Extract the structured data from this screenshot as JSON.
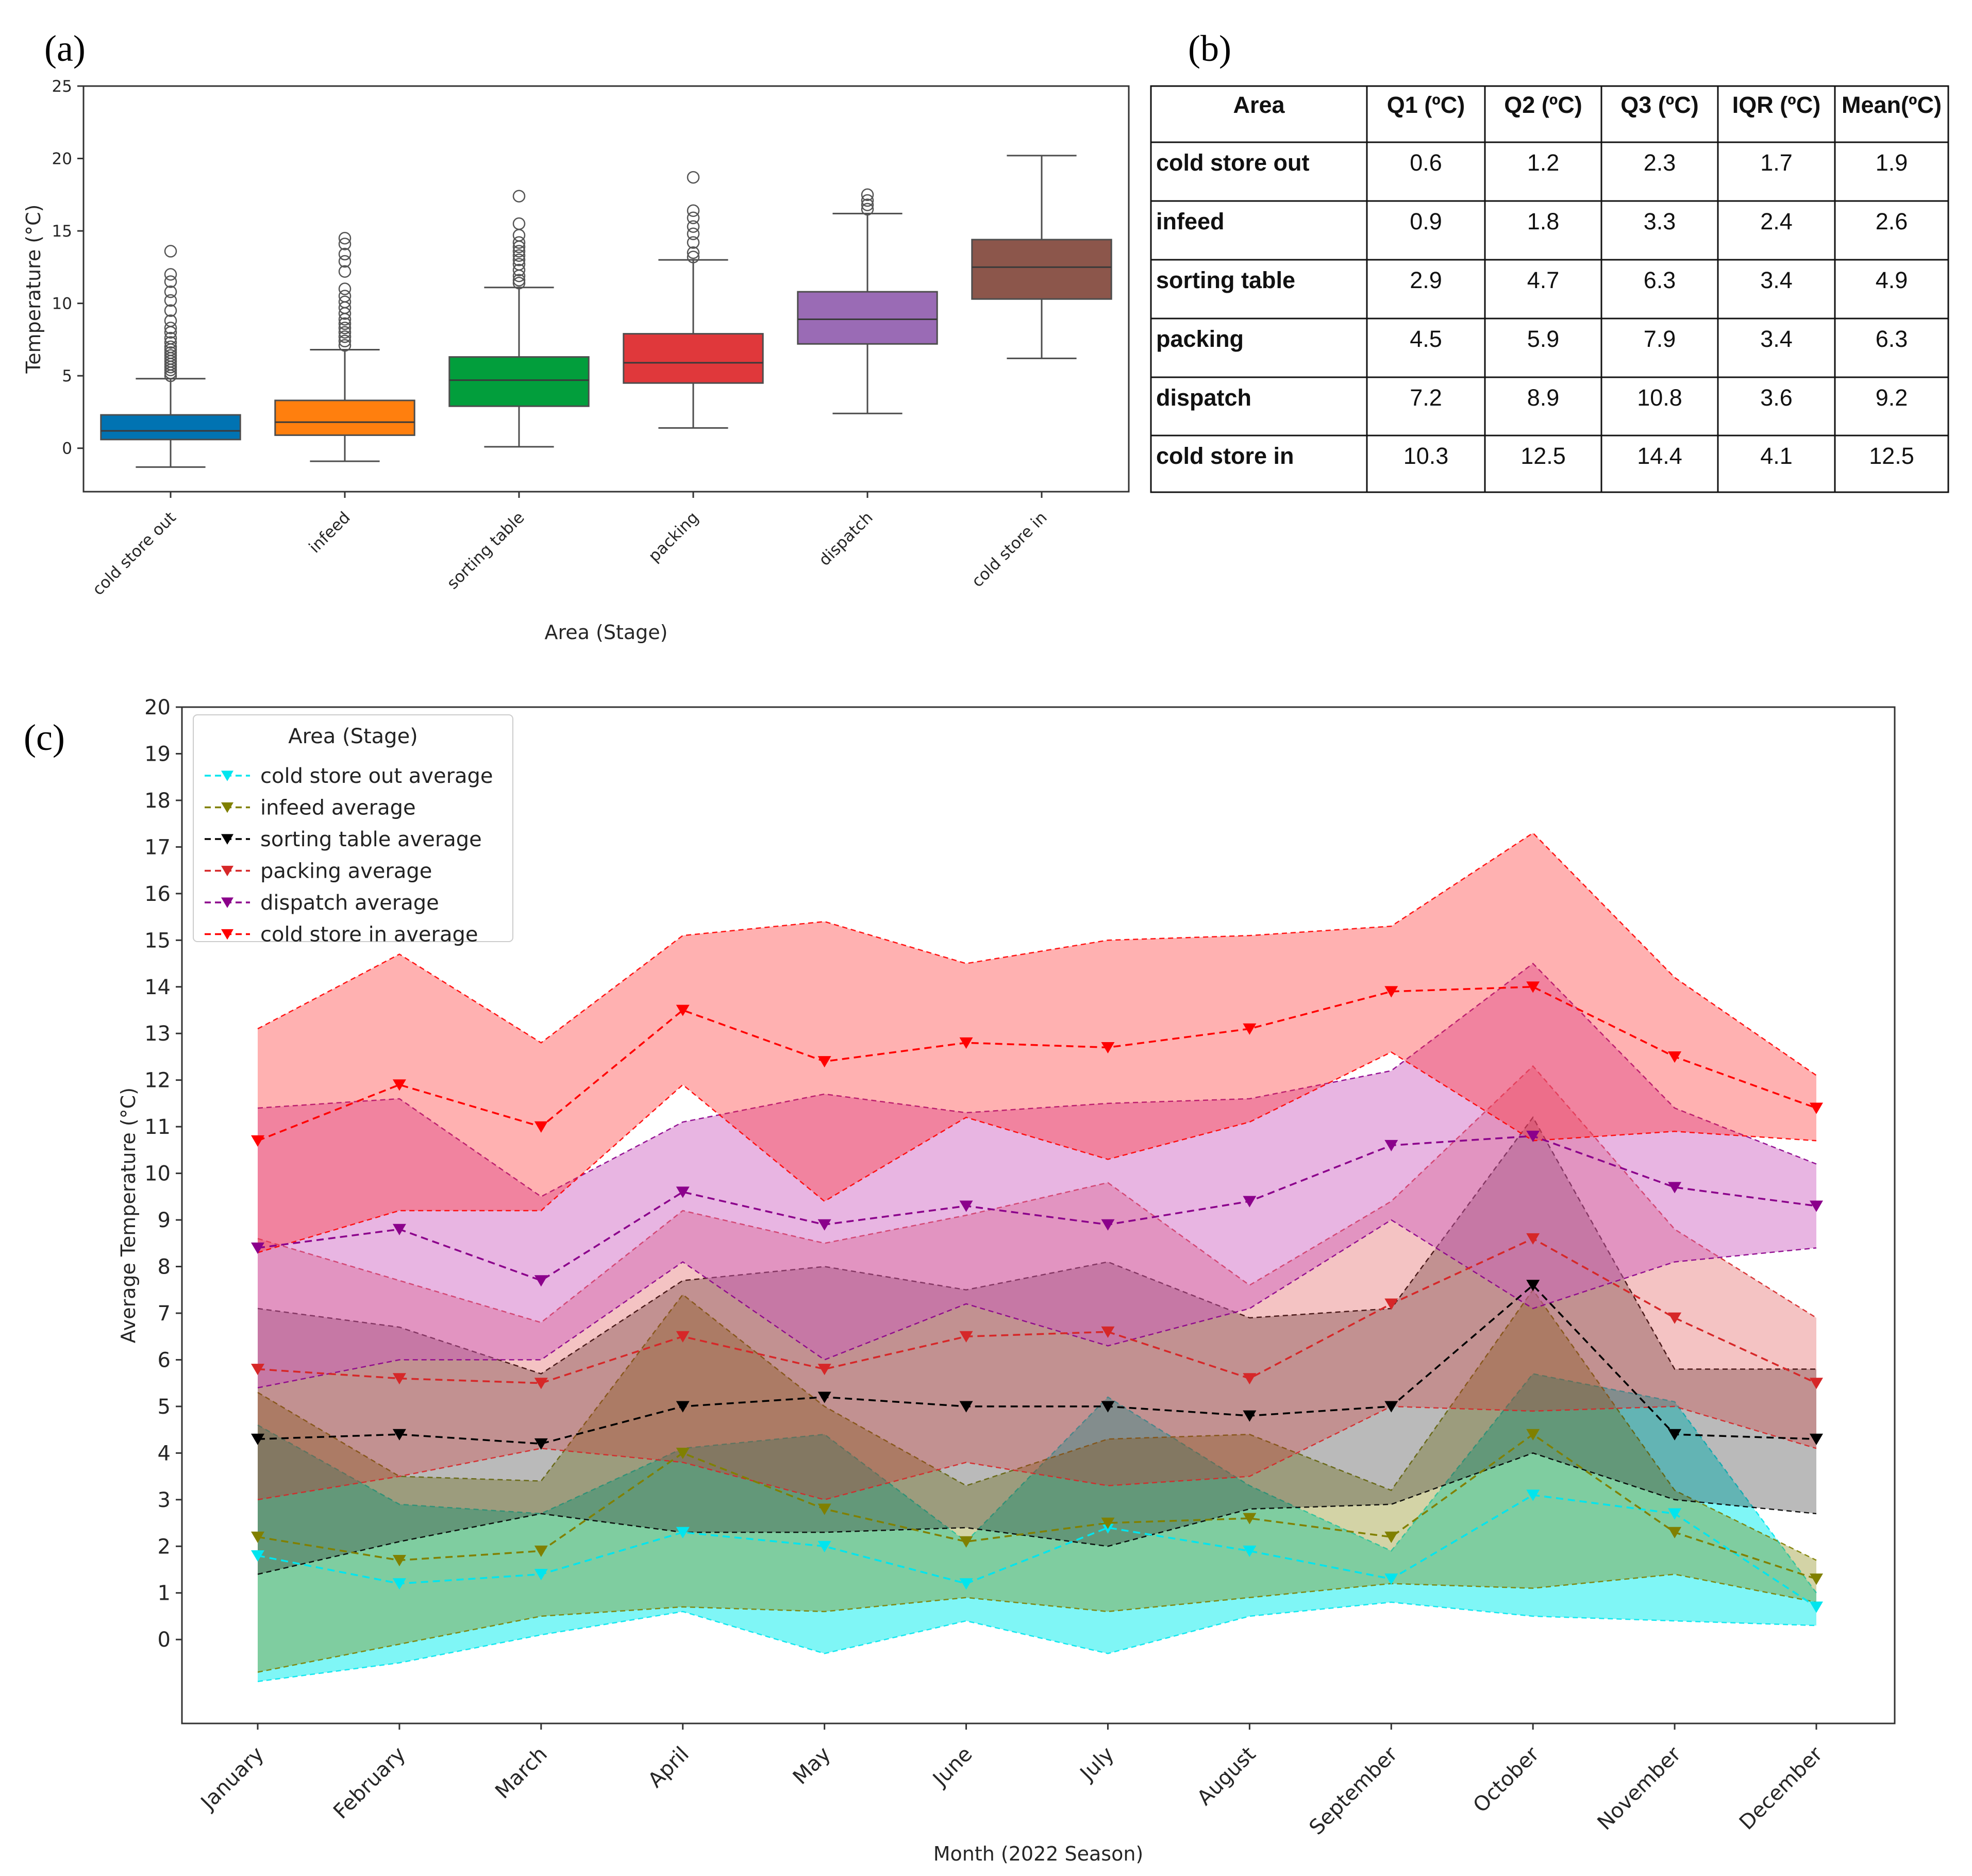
{
  "panel_labels": {
    "a": "(a)",
    "b": "(b)",
    "c": "(c)"
  },
  "chart_data": [
    {
      "type": "box",
      "categories": [
        "cold store out",
        "infeed",
        "sorting table",
        "packing",
        "dispatch",
        "cold store in"
      ],
      "colors": [
        "#0173b2",
        "#ff7f0e",
        "#029e3c",
        "#e0383b",
        "#9a6bb5",
        "#8c564b"
      ],
      "xlabel": "Area (Stage)",
      "ylabel": "Temperature (°C)",
      "ylim": [
        -3,
        25
      ],
      "yticks": [
        0,
        5,
        10,
        15,
        20,
        25
      ],
      "boxes": [
        {
          "q1": 0.6,
          "median": 1.2,
          "q3": 2.3,
          "whisker_low": -1.3,
          "whisker_high": 4.8,
          "outliers": [
            5.0,
            5.2,
            5.4,
            5.6,
            5.8,
            6.0,
            6.2,
            6.4,
            6.6,
            6.8,
            7.0,
            7.3,
            7.6,
            8.0,
            8.3,
            8.8,
            9.5,
            10.2,
            10.8,
            11.5,
            12.0,
            13.6
          ]
        },
        {
          "q1": 0.9,
          "median": 1.8,
          "q3": 3.3,
          "whisker_low": -0.9,
          "whisker_high": 6.8,
          "outliers": [
            7.1,
            7.4,
            7.7,
            8.0,
            8.3,
            8.6,
            8.9,
            9.3,
            9.7,
            10.1,
            10.5,
            11.0,
            12.2,
            12.9,
            13.4,
            14.1,
            14.5
          ]
        },
        {
          "q1": 2.9,
          "median": 4.7,
          "q3": 6.3,
          "whisker_low": 0.1,
          "whisker_high": 11.1,
          "outliers": [
            11.4,
            11.6,
            11.9,
            12.3,
            12.7,
            13.0,
            13.3,
            13.6,
            13.9,
            14.2,
            14.7,
            15.5,
            17.4
          ]
        },
        {
          "q1": 4.5,
          "median": 5.9,
          "q3": 7.9,
          "whisker_low": 1.4,
          "whisker_high": 13.0,
          "outliers": [
            13.2,
            13.5,
            14.2,
            14.8,
            15.3,
            15.9,
            16.4,
            18.7
          ]
        },
        {
          "q1": 7.2,
          "median": 8.9,
          "q3": 10.8,
          "whisker_low": 2.4,
          "whisker_high": 16.2,
          "outliers": [
            16.5,
            16.8,
            17.1,
            17.5
          ]
        },
        {
          "q1": 10.3,
          "median": 12.5,
          "q3": 14.4,
          "whisker_low": 6.2,
          "whisker_high": 20.2,
          "outliers": []
        }
      ]
    },
    {
      "type": "table",
      "columns": [
        "Area",
        "Q1 (ºC)",
        "Q2 (ºC)",
        "Q3 (ºC)",
        "IQR (ºC)",
        "Mean(ºC)"
      ],
      "rows": [
        [
          "cold store out",
          "0.6",
          "1.2",
          "2.3",
          "1.7",
          "1.9"
        ],
        [
          "infeed",
          "0.9",
          "1.8",
          "3.3",
          "2.4",
          "2.6"
        ],
        [
          "sorting table",
          "2.9",
          "4.7",
          "6.3",
          "3.4",
          "4.9"
        ],
        [
          "packing",
          "4.5",
          "5.9",
          "7.9",
          "3.4",
          "6.3"
        ],
        [
          "dispatch",
          "7.2",
          "8.9",
          "10.8",
          "3.6",
          "9.2"
        ],
        [
          "cold store in",
          "10.3",
          "12.5",
          "14.4",
          "4.1",
          "12.5"
        ]
      ]
    },
    {
      "type": "line",
      "categories": [
        "January",
        "February",
        "March",
        "April",
        "May",
        "June",
        "July",
        "August",
        "September",
        "October",
        "November",
        "December"
      ],
      "xlabel": "Month (2022 Season)",
      "ylabel": "Average Temperature (°C)",
      "ylim": [
        -1.8,
        20
      ],
      "yticks": [
        0,
        1,
        2,
        3,
        4,
        5,
        6,
        7,
        8,
        9,
        10,
        11,
        12,
        13,
        14,
        15,
        16,
        17,
        18,
        19,
        20
      ],
      "legend_title": "Area (Stage)",
      "legend_position": "top-left",
      "series": [
        {
          "name": "cold store out average",
          "color": "#00e5ee",
          "fill": "rgba(0,238,238,0.5)",
          "values": [
            1.8,
            1.2,
            1.4,
            2.3,
            2.0,
            1.2,
            2.4,
            1.9,
            1.3,
            3.1,
            2.7,
            0.7
          ],
          "upper": [
            4.6,
            2.9,
            2.7,
            4.1,
            4.4,
            2.1,
            5.2,
            3.3,
            1.9,
            5.7,
            5.1,
            1.0
          ],
          "lower": [
            -0.9,
            -0.5,
            0.1,
            0.6,
            -0.3,
            0.4,
            -0.3,
            0.5,
            0.8,
            0.5,
            0.4,
            0.3
          ]
        },
        {
          "name": "infeed average",
          "color": "#808000",
          "fill": "rgba(128,128,0,0.35)",
          "values": [
            2.2,
            1.7,
            1.9,
            4.0,
            2.8,
            2.1,
            2.5,
            2.6,
            2.2,
            4.4,
            2.3,
            1.3
          ],
          "upper": [
            5.3,
            3.5,
            3.4,
            7.4,
            5.0,
            3.3,
            4.3,
            4.4,
            3.2,
            7.5,
            3.2,
            1.7
          ],
          "lower": [
            -0.7,
            -0.1,
            0.5,
            0.7,
            0.6,
            0.9,
            0.6,
            0.9,
            1.2,
            1.1,
            1.4,
            0.8
          ]
        },
        {
          "name": "sorting table average",
          "color": "#000000",
          "fill": "rgba(40,40,40,0.32)",
          "values": [
            4.3,
            4.4,
            4.2,
            5.0,
            5.2,
            5.0,
            5.0,
            4.8,
            5.0,
            7.6,
            4.4,
            4.3
          ],
          "upper": [
            7.1,
            6.7,
            5.7,
            7.7,
            8.0,
            7.5,
            8.1,
            6.9,
            7.1,
            11.2,
            5.8,
            5.8
          ],
          "lower": [
            1.4,
            2.1,
            2.7,
            2.3,
            2.3,
            2.4,
            2.0,
            2.8,
            2.9,
            4.0,
            3.0,
            2.7
          ]
        },
        {
          "name": "packing average",
          "color": "#d62728",
          "fill": "rgba(214,39,40,0.28)",
          "values": [
            5.8,
            5.6,
            5.5,
            6.5,
            5.8,
            6.5,
            6.6,
            5.6,
            7.2,
            8.6,
            6.9,
            5.5
          ],
          "upper": [
            8.6,
            7.7,
            6.8,
            9.2,
            8.5,
            9.1,
            9.8,
            7.6,
            9.4,
            12.3,
            8.8,
            6.9
          ],
          "lower": [
            3.0,
            3.5,
            4.1,
            3.8,
            3.0,
            3.8,
            3.3,
            3.5,
            5.0,
            4.9,
            5.0,
            4.1
          ]
        },
        {
          "name": "dispatch average",
          "color": "#8b008b",
          "fill": "rgba(205,90,190,0.45)",
          "values": [
            8.4,
            8.8,
            7.7,
            9.6,
            8.9,
            9.3,
            8.9,
            9.4,
            10.6,
            10.8,
            9.7,
            9.3
          ],
          "upper": [
            11.4,
            11.6,
            9.5,
            11.1,
            11.7,
            11.3,
            11.5,
            11.6,
            12.2,
            14.5,
            11.4,
            10.2
          ],
          "lower": [
            5.4,
            6.0,
            6.0,
            8.1,
            6.0,
            7.2,
            6.3,
            7.1,
            9.0,
            7.1,
            8.1,
            8.4
          ]
        },
        {
          "name": "cold store in average",
          "color": "#ff0000",
          "fill": "rgba(255,50,50,0.38)",
          "values": [
            10.7,
            11.9,
            11.0,
            13.5,
            12.4,
            12.8,
            12.7,
            13.1,
            13.9,
            14.0,
            12.5,
            11.4
          ],
          "upper": [
            13.1,
            14.7,
            12.8,
            15.1,
            15.4,
            14.5,
            15.0,
            15.1,
            15.3,
            17.3,
            14.2,
            12.1
          ],
          "lower": [
            8.3,
            9.2,
            9.2,
            11.9,
            9.4,
            11.2,
            10.3,
            11.1,
            12.6,
            10.7,
            10.9,
            10.7
          ]
        }
      ]
    }
  ]
}
